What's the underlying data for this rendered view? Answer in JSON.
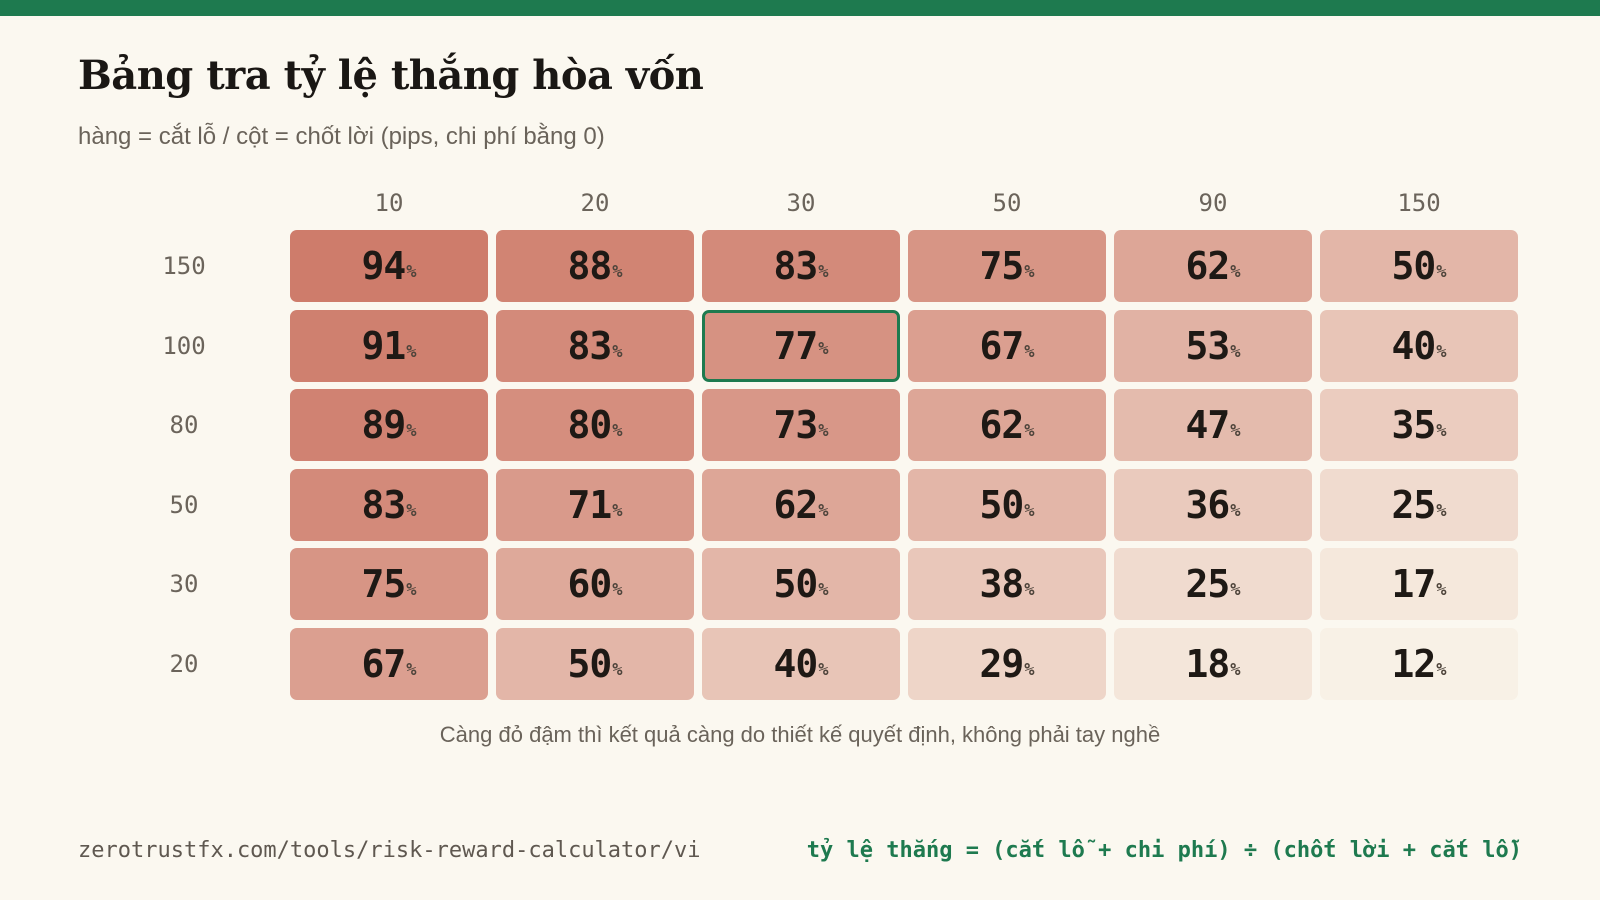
{
  "header": {
    "title": "Bảng tra tỷ lệ thắng hòa vốn",
    "subtitle": "hàng = cắt lỗ / cột = chốt lời (pips, chi phí bằng 0)"
  },
  "caption": "Càng đỏ đậm thì kết quả càng do thiết kế quyết định, không phải tay nghề",
  "footer": {
    "url": "zerotrustfx.com/tools/risk-reward-calculator/vi",
    "formula": "tỷ lệ thắng = (cắt lỗ + chi phí) ÷ (chốt lời + cắt lỗ)"
  },
  "colors": {
    "accent": "#1e7a4f",
    "heat_low": "#f8f1e6",
    "heat_high": "#ce7c6b",
    "background": "#fbf8f0"
  },
  "chart_data": {
    "type": "heatmap",
    "title": "Bảng tra tỷ lệ thắng hòa vốn",
    "subtitle": "hàng = cắt lỗ / cột = chốt lời (pips, chi phí bằng 0)",
    "unit": "%",
    "x_categories": [
      "10",
      "20",
      "30",
      "50",
      "90",
      "150"
    ],
    "y_categories": [
      "150",
      "100",
      "80",
      "50",
      "30",
      "20"
    ],
    "values": [
      [
        94,
        88,
        83,
        75,
        62,
        50
      ],
      [
        91,
        83,
        77,
        67,
        53,
        40
      ],
      [
        89,
        80,
        73,
        62,
        47,
        35
      ],
      [
        83,
        71,
        62,
        50,
        36,
        25
      ],
      [
        75,
        60,
        50,
        38,
        25,
        17
      ],
      [
        67,
        50,
        40,
        29,
        18,
        12
      ]
    ],
    "highlighted_cell": {
      "row": "100",
      "col": "30"
    }
  }
}
